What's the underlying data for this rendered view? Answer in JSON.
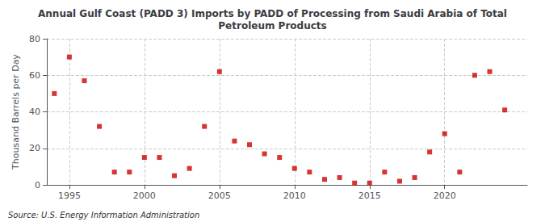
{
  "chart_data": {
    "type": "scatter",
    "title": "Annual Gulf Coast (PADD 3) Imports by PADD of Processing from Saudi Arabia of Total\nPetroleum Products",
    "ylabel": "Thousand Barrels per Day",
    "annotations": [
      "Source: U.S. Energy Information Administration"
    ],
    "x": [
      1994,
      1995,
      1996,
      1997,
      1998,
      1999,
      2000,
      2001,
      2002,
      2003,
      2004,
      2005,
      2006,
      2007,
      2008,
      2009,
      2010,
      2011,
      2012,
      2013,
      2014,
      2015,
      2016,
      2017,
      2018,
      2019,
      2020,
      2021,
      2022,
      2023,
      2024
    ],
    "values": [
      50,
      70,
      57,
      32,
      7,
      7,
      15,
      15,
      5,
      9,
      32,
      62,
      24,
      22,
      17,
      15,
      9,
      7,
      3,
      4,
      1,
      1,
      7,
      2,
      4,
      18,
      28,
      7,
      60,
      62,
      41
    ],
    "color": "#cc0000",
    "marker": "square",
    "xlim": [
      1993.5,
      2025.5
    ],
    "xticks": [
      1995,
      2000,
      2005,
      2010,
      2015,
      2020
    ],
    "ylim": [
      0,
      80
    ],
    "yticks": [
      0,
      20,
      40,
      60,
      80
    ],
    "grid": true
  }
}
